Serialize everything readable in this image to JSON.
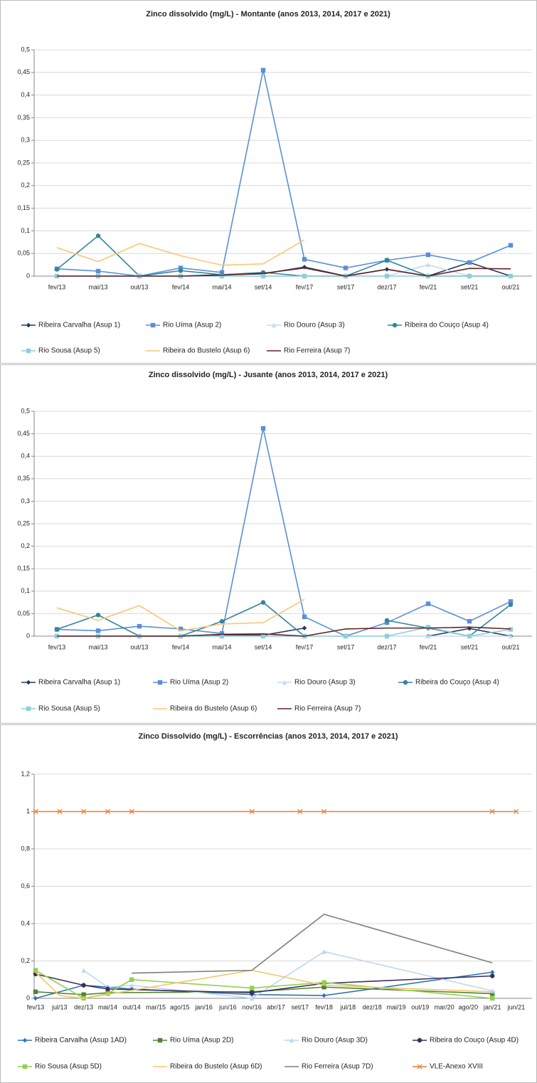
{
  "chart_data": [
    {
      "type": "line",
      "title": "Zinco dissolvido (mg/L) - Montante (anos 2013, 2014, 2017 e 2021)",
      "categories": [
        "fev/13",
        "mai/13",
        "out/13",
        "fev/14",
        "mai/14",
        "set/14",
        "fev/17",
        "set/17",
        "dez/17",
        "fev/21",
        "set/21",
        "out/21"
      ],
      "ylim": [
        0,
        0.5
      ],
      "yticks": [
        0,
        {
          "value": 0.05,
          "label": "0,05"
        },
        {
          "value": 0.1,
          "label": "0,1"
        },
        {
          "value": 0.15,
          "label": "0,15"
        },
        {
          "value": 0.2,
          "label": "0,2"
        },
        {
          "value": 0.25,
          "label": "0,25"
        },
        {
          "value": 0.3,
          "label": "0,3"
        },
        {
          "value": 0.35,
          "label": "0,35"
        },
        {
          "value": 0.4,
          "label": "0,4"
        },
        {
          "value": 0.45,
          "label": "0,45"
        },
        {
          "value": 0.5,
          "label": "0,5"
        }
      ],
      "grid": true,
      "legend": "bottom",
      "series": [
        {
          "name": "Ribeira Carvalha (Asup 1)",
          "color": "#1f3864",
          "marker": "diamond",
          "values": [
            0,
            0,
            0,
            0,
            0.003,
            0.005,
            0.02,
            0,
            0.015,
            0,
            0.03,
            0
          ]
        },
        {
          "name": "Rio Uíma (Asup 2)",
          "color": "#5b8fd6",
          "marker": "square",
          "values": [
            0.016,
            0.011,
            0,
            0.018,
            0.008,
            0.455,
            0.037,
            0.018,
            0.035,
            0.047,
            0.03,
            0.068
          ]
        },
        {
          "name": "Rio Douro (Asup 3)",
          "color": "#c5d9f1",
          "marker": "triangle",
          "values": [
            0,
            0,
            0,
            0,
            0,
            0,
            0,
            0,
            0,
            0.025,
            0,
            0
          ]
        },
        {
          "name": "Ribeira do Couço (Asup 4)",
          "color": "#31859c",
          "marker": "circle",
          "values": [
            0.015,
            0.089,
            0,
            0.012,
            0.003,
            0.008,
            0,
            0,
            0.035,
            0,
            0,
            0
          ]
        },
        {
          "name": "Rio Sousa (Asup 5)",
          "color": "#92cddc",
          "marker": "square",
          "values": [
            0,
            0,
            0,
            0,
            0,
            0,
            0,
            0,
            0,
            0,
            0,
            0
          ]
        },
        {
          "name": "Ribeira do Bustelo (Asup 6)",
          "color": "#fac775",
          "marker": "none",
          "values": [
            0.063,
            0.032,
            0.072,
            0.045,
            0.024,
            0.027,
            0.08,
            null,
            null,
            null,
            null,
            null
          ]
        },
        {
          "name": "Rio Ferreira (Asup 7)",
          "color": "#632523",
          "marker": "none",
          "values": [
            0,
            0,
            0,
            0,
            0.002,
            0.006,
            0.018,
            0,
            0.015,
            0,
            0.017,
            0.016
          ]
        }
      ]
    },
    {
      "type": "line",
      "title": "Zinco dissolvido (mg/L) - Jusante (anos 2013, 2014, 2017 e 2021)",
      "categories": [
        "fev/13",
        "mai/13",
        "out/13",
        "fev/14",
        "mai/14",
        "set/14",
        "fev/17",
        "set/17",
        "dez/17",
        "fev/21",
        "set/21",
        "out/21"
      ],
      "ylim": [
        0,
        0.5
      ],
      "yticks": [
        0,
        {
          "value": 0.05,
          "label": "0,05"
        },
        {
          "value": 0.1,
          "label": "0,1"
        },
        {
          "value": 0.15,
          "label": "0,15"
        },
        {
          "value": 0.2,
          "label": "0,2"
        },
        {
          "value": 0.25,
          "label": "0,25"
        },
        {
          "value": 0.3,
          "label": "0,3"
        },
        {
          "value": 0.35,
          "label": "0,35"
        },
        {
          "value": 0.4,
          "label": "0,4"
        },
        {
          "value": 0.45,
          "label": "0,45"
        },
        {
          "value": 0.5,
          "label": "0,5"
        }
      ],
      "grid": true,
      "legend": "bottom",
      "series": [
        {
          "name": "Ribeira Carvalha (Asup 1)",
          "color": "#1f3864",
          "marker": "diamond",
          "values": [
            0,
            0,
            0,
            0,
            0.003,
            0.002,
            0.018,
            null,
            null,
            0,
            0.017,
            0
          ]
        },
        {
          "name": "Rio Uíma (Asup 2)",
          "color": "#5b8fd6",
          "marker": "square",
          "values": [
            0.015,
            0.012,
            0.022,
            0.016,
            0.006,
            0.462,
            0.043,
            0,
            0.03,
            0.072,
            0.033,
            0.077
          ]
        },
        {
          "name": "Rio Douro (Asup 3)",
          "color": "#c5d9f1",
          "marker": "triangle",
          "values": [
            0,
            0,
            0,
            0,
            0,
            0,
            0,
            0,
            0,
            0,
            0,
            0
          ]
        },
        {
          "name": "Ribeira do Couço (Asup 4)",
          "color": "#31859c",
          "marker": "circle",
          "values": [
            0.015,
            0.047,
            0,
            0,
            0.033,
            0.075,
            0,
            null,
            0.035,
            0.018,
            0,
            0.07
          ]
        },
        {
          "name": "Rio Sousa (Asup 5)",
          "color": "#92cddc",
          "marker": "square",
          "values": [
            0,
            0,
            0,
            0,
            0,
            0,
            0,
            0,
            0,
            0.02,
            0,
            0.015
          ]
        },
        {
          "name": "Ribeira do Bustelo (Asup 6)",
          "color": "#fac775",
          "marker": "none",
          "values": [
            0.063,
            0.035,
            0.068,
            0.012,
            0.027,
            0.03,
            0.082,
            null,
            null,
            null,
            null,
            null
          ]
        },
        {
          "name": "Rio Ferreira (Asup 7)",
          "color": "#632523",
          "marker": "none",
          "values": [
            0,
            0,
            0,
            0,
            0.004,
            0.005,
            0,
            0.016,
            0.018,
            0.018,
            0.02,
            0.016
          ]
        }
      ]
    },
    {
      "type": "line",
      "title": "Zinco Dissolvido (mg/L) - Escorrências (anos 2013, 2014, 2017 e 2021)",
      "categories": [
        "fev/13",
        "jul/13",
        "dez/13",
        "mai/14",
        "out/14",
        "mar/15",
        "ago/15",
        "jan/16",
        "jun/16",
        "nov/16",
        "abr/17",
        "set/17",
        "fev/18",
        "jul/18",
        "dez/18",
        "mai/19",
        "out/19",
        "mar/20",
        "ago/20",
        "jan/21",
        "jun/21"
      ],
      "ylim": [
        0,
        1.2
      ],
      "yticks": [
        0,
        {
          "value": 0.2,
          "label": "0,2"
        },
        {
          "value": 0.4,
          "label": "0,4"
        },
        {
          "value": 0.6,
          "label": "0,6"
        },
        {
          "value": 0.8,
          "label": "0,8"
        },
        1,
        {
          "value": 1.2,
          "label": "1,2"
        }
      ],
      "grid": true,
      "legend": "bottom",
      "series": [
        {
          "name": "Ribeira Carvalha (Asup 1AD)",
          "color": "#2e75b6",
          "marker": "diamond",
          "x": [
            "fev/13",
            "dez/13",
            "mai/14",
            "out/14",
            "nov/16",
            "fev/18",
            "jan/21"
          ],
          "values": [
            0,
            0.07,
            0.06,
            0.05,
            0.02,
            0.015,
            0.14
          ]
        },
        {
          "name": "Rio Uíma (Asup 2D)",
          "color": "#548235",
          "marker": "square",
          "x": [
            "fev/13",
            "dez/13",
            "mai/14",
            "nov/16",
            "fev/18",
            "jan/21"
          ],
          "values": [
            0.035,
            0.02,
            0.03,
            0.035,
            0.06,
            0.025
          ]
        },
        {
          "name": "Rio Douro (Asup 3D)",
          "color": "#bdd7ee",
          "marker": "triangle",
          "x": [
            "dez/13",
            "mai/14",
            "out/14",
            "nov/16",
            "fev/18",
            "jan/21"
          ],
          "values": [
            0.15,
            0.06,
            0.07,
            0,
            0.25,
            0.04
          ]
        },
        {
          "name": "Ribeira do Couço (Asup 4D)",
          "color": "#3b2f5b",
          "marker": "circle",
          "x": [
            "fev/13",
            "dez/13",
            "mai/14",
            "nov/16",
            "fev/18",
            "jan/21"
          ],
          "values": [
            0.13,
            0.07,
            0.05,
            0.03,
            0.08,
            0.12
          ]
        },
        {
          "name": "Rio Sousa (Asup 5D)",
          "color": "#92d050",
          "marker": "square",
          "x": [
            "fev/13",
            "dez/13",
            "mai/14",
            "out/14",
            "nov/16",
            "fev/18",
            "jan/21"
          ],
          "values": [
            0.15,
            0,
            0.025,
            0.1,
            0.055,
            0.085,
            0
          ]
        },
        {
          "name": "Ribeira do Bustelo (Asup 6D)",
          "color": "#f4c76b",
          "marker": "none",
          "x": [
            "fev/13",
            "jul/13",
            "dez/13",
            "nov/16",
            "fev/18",
            "jan/21"
          ],
          "values": [
            0.14,
            0.015,
            0,
            0.15,
            0.07,
            0.035
          ]
        },
        {
          "name": "Rio Ferreira (Asup 7D)",
          "color": "#7f7f7f",
          "marker": "none",
          "x": [
            "out/14",
            "nov/16",
            "fev/18",
            "jan/21"
          ],
          "values": [
            0.135,
            0.15,
            0.45,
            0.19
          ]
        },
        {
          "name": "VLE-Anexo XVIII",
          "color": "#ed7d31",
          "marker": "x",
          "x": [
            "fev/13",
            "jul/13",
            "dez/13",
            "mai/14",
            "out/14",
            "nov/16",
            "set/17",
            "fev/18",
            "jan/21",
            "jun/21"
          ],
          "values": [
            1,
            1,
            1,
            1,
            1,
            1,
            1,
            1,
            1,
            1
          ]
        }
      ]
    }
  ]
}
